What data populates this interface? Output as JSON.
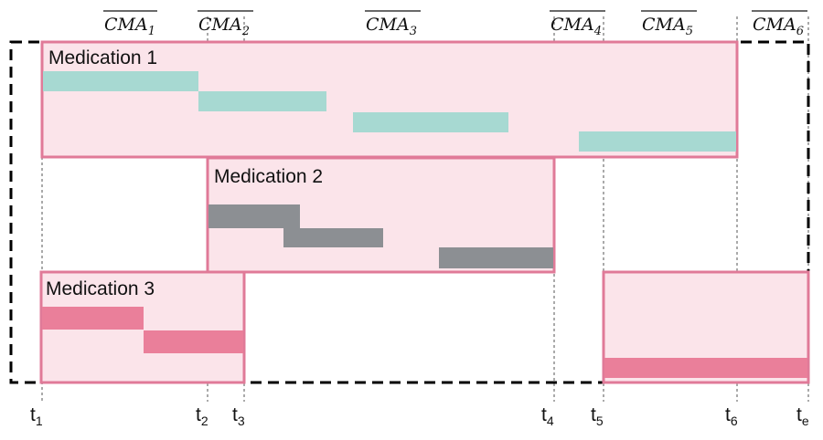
{
  "colors": {
    "overall_border": "#000000",
    "med_fill": "#fbe4ea",
    "med_border": "#e07a98",
    "dose_med1": "#a7d9d2",
    "dose_med2": "#8c8f93",
    "dose_med3": "#ea7f9a",
    "guide_line": "#555555"
  },
  "cma_labels": [
    {
      "base": "CMA",
      "sub": "1"
    },
    {
      "base": "CMA",
      "sub": "2"
    },
    {
      "base": "CMA",
      "sub": "3"
    },
    {
      "base": "CMA",
      "sub": "4"
    },
    {
      "base": "CMA",
      "sub": "5"
    },
    {
      "base": "CMA",
      "sub": "6"
    }
  ],
  "time_labels": [
    {
      "base": "t",
      "sub": "1"
    },
    {
      "base": "t",
      "sub": "2"
    },
    {
      "base": "t",
      "sub": "3"
    },
    {
      "base": "t",
      "sub": "4"
    },
    {
      "base": "t",
      "sub": "5"
    },
    {
      "base": "t",
      "sub": "6"
    },
    {
      "base": "t",
      "sub": "e"
    }
  ],
  "medications": [
    {
      "label": "Medication 1",
      "color_key": "dose_med1"
    },
    {
      "label": "Medication 2",
      "color_key": "dose_med2"
    },
    {
      "label": "Medication 3",
      "color_key": "dose_med3"
    }
  ]
}
